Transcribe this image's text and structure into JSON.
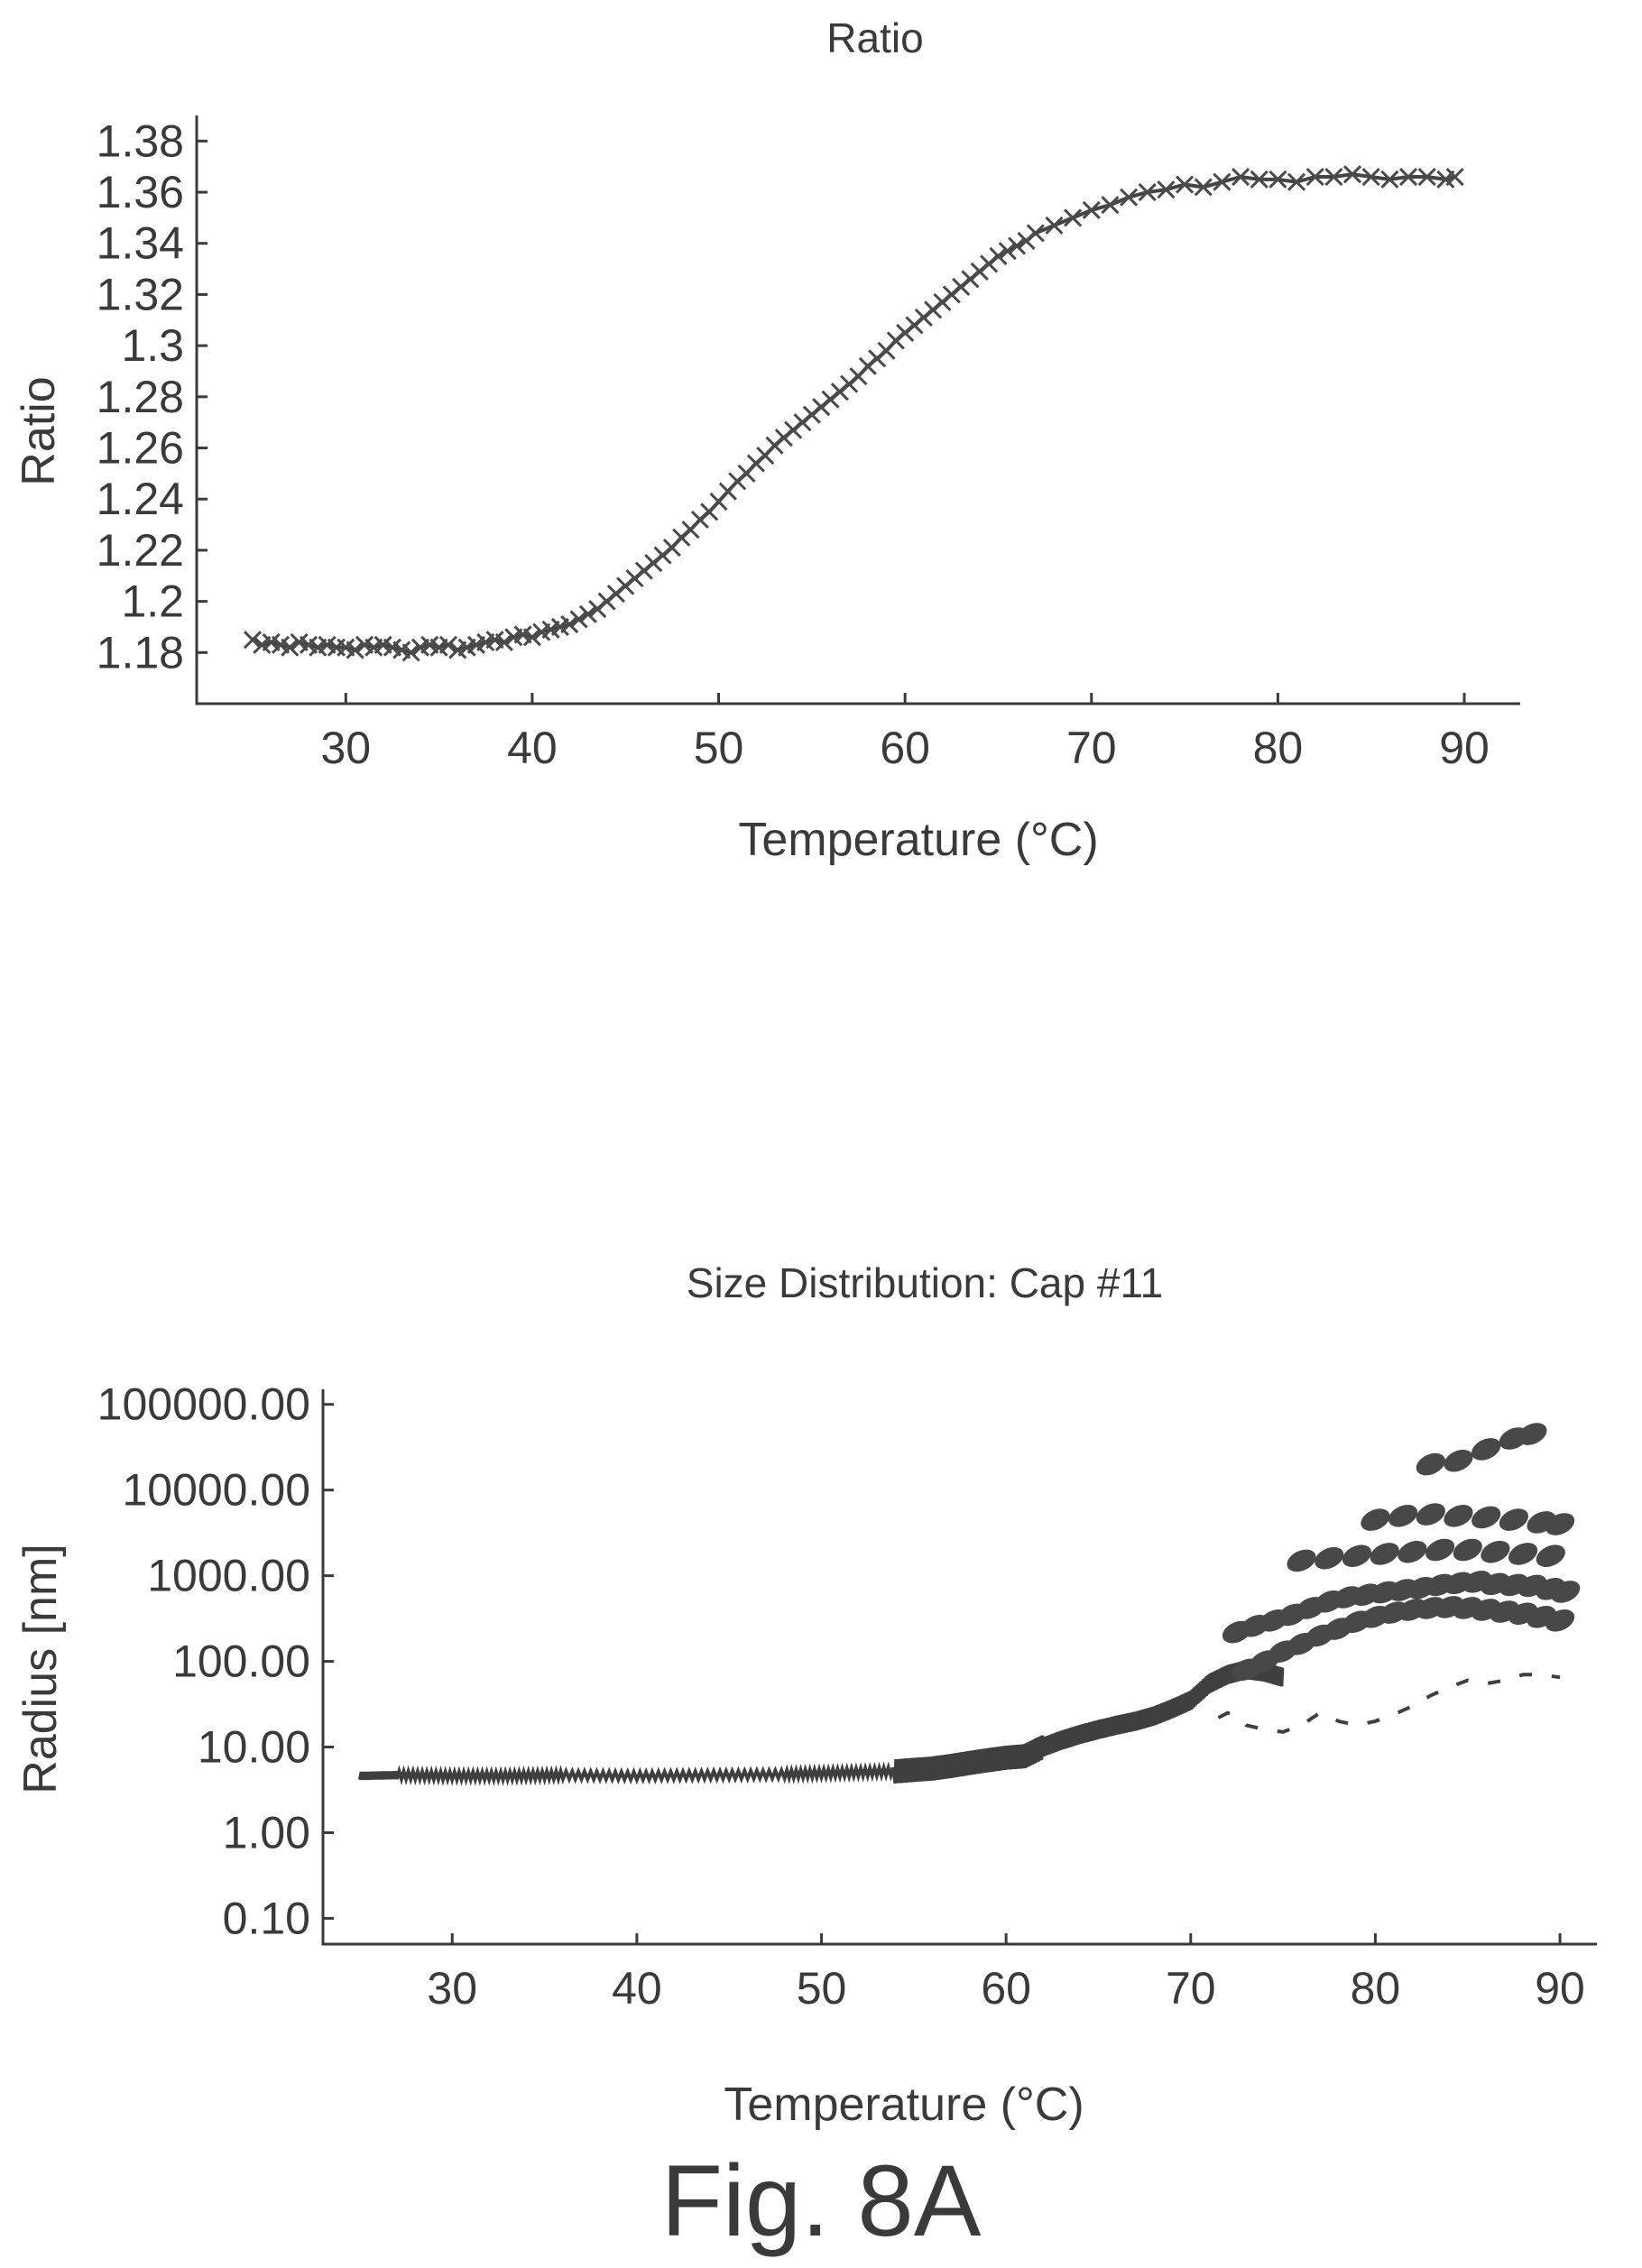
{
  "figure_caption": "Fig. 8A",
  "chart_data": [
    {
      "type": "scatter",
      "title": "Ratio",
      "xlabel": "Temperature (°C)",
      "ylabel": "Ratio",
      "xlim": [
        22,
        93
      ],
      "ylim": [
        1.16,
        1.39
      ],
      "xticks": [
        30,
        40,
        50,
        60,
        70,
        80,
        90
      ],
      "xtick_labels": [
        "30",
        "40",
        "50",
        "60",
        "70",
        "80",
        "90"
      ],
      "yticks": [
        1.18,
        1.2,
        1.22,
        1.24,
        1.26,
        1.28,
        1.3,
        1.32,
        1.34,
        1.36,
        1.38
      ],
      "ytick_labels": [
        "1.18",
        "1.2",
        "1.22",
        "1.24",
        "1.26",
        "1.28",
        "1.3",
        "1.32",
        "1.34",
        "1.36",
        "1.38"
      ],
      "series": [
        {
          "marker": "x",
          "x": [
            25,
            25.5,
            26,
            26.5,
            27,
            27.5,
            28,
            28.5,
            29,
            29.5,
            30,
            30.5,
            31,
            31.5,
            32,
            32.5,
            33,
            33.5,
            34,
            34.5,
            35,
            35.5,
            36,
            36.5,
            37,
            37.5,
            38,
            38.5,
            39,
            39.5,
            40,
            40.5,
            41,
            41.5,
            42,
            42.5,
            43,
            43.5,
            44,
            44.5,
            45,
            45.5,
            46,
            46.5,
            47,
            47.5,
            48,
            48.5,
            49,
            49.5,
            50,
            50.5,
            51,
            51.5,
            52,
            52.5,
            53,
            53.5,
            54,
            54.5,
            55,
            55.5,
            56,
            56.5,
            57,
            57.5,
            58,
            58.5,
            59,
            59.5,
            60,
            60.5,
            61,
            61.5,
            62,
            62.5,
            63,
            63.5,
            64,
            64.5,
            65,
            65.5,
            66,
            66.5,
            67,
            68,
            69,
            70,
            71,
            72,
            73,
            74,
            75,
            76,
            77,
            78,
            79,
            80,
            81,
            82,
            83,
            84,
            85,
            86,
            87,
            88,
            89,
            89.5
          ],
          "y": [
            1.185,
            1.183,
            1.184,
            1.183,
            1.182,
            1.184,
            1.183,
            1.182,
            1.183,
            1.182,
            1.182,
            1.181,
            1.183,
            1.182,
            1.183,
            1.182,
            1.181,
            1.18,
            1.182,
            1.183,
            1.182,
            1.183,
            1.181,
            1.182,
            1.183,
            1.184,
            1.185,
            1.184,
            1.186,
            1.187,
            1.186,
            1.188,
            1.189,
            1.19,
            1.191,
            1.193,
            1.195,
            1.197,
            1.2,
            1.203,
            1.206,
            1.209,
            1.212,
            1.215,
            1.218,
            1.221,
            1.225,
            1.228,
            1.232,
            1.235,
            1.239,
            1.243,
            1.247,
            1.25,
            1.254,
            1.257,
            1.261,
            1.264,
            1.267,
            1.27,
            1.273,
            1.276,
            1.279,
            1.282,
            1.285,
            1.288,
            1.292,
            1.295,
            1.298,
            1.302,
            1.305,
            1.308,
            1.311,
            1.314,
            1.317,
            1.32,
            1.323,
            1.326,
            1.329,
            1.332,
            1.335,
            1.337,
            1.339,
            1.341,
            1.344,
            1.347,
            1.35,
            1.353,
            1.355,
            1.358,
            1.36,
            1.361,
            1.363,
            1.362,
            1.364,
            1.366,
            1.365,
            1.365,
            1.364,
            1.366,
            1.366,
            1.367,
            1.366,
            1.365,
            1.366,
            1.366,
            1.365,
            1.366
          ]
        }
      ]
    },
    {
      "type": "line",
      "title": "Size Distribution: Cap #11",
      "xlabel": "Temperature (°C)",
      "ylabel": "Radius [nm]",
      "y_scale": "log",
      "xlim": [
        23,
        92
      ],
      "ylim": [
        0.05,
        150000
      ],
      "xticks": [
        30,
        40,
        50,
        60,
        70,
        80,
        90
      ],
      "xtick_labels": [
        "30",
        "40",
        "50",
        "60",
        "70",
        "80",
        "90"
      ],
      "yticks": [
        0.1,
        1,
        10,
        100,
        1000,
        10000,
        100000
      ],
      "ytick_labels": [
        "0.10",
        "1.00",
        "10.00",
        "100.00",
        "1000.00",
        "10000.00",
        "100000.00"
      ],
      "series": [
        {
          "x": [
            25,
            27,
            30,
            33,
            36,
            40,
            44,
            48,
            51,
            54,
            55,
            56,
            57,
            58,
            59,
            60,
            61,
            62,
            63,
            64,
            65,
            66,
            67,
            68,
            69,
            70,
            71,
            72,
            73,
            74,
            75
          ],
          "y": [
            4.6,
            4.7,
            4.6,
            4.6,
            4.7,
            4.6,
            4.7,
            4.8,
            5,
            5.2,
            5.4,
            5.6,
            6,
            6.5,
            7,
            7.5,
            7.8,
            10,
            12,
            14,
            16,
            18,
            20,
            23,
            28,
            35,
            55,
            70,
            80,
            75,
            65
          ]
        },
        {
          "x": [
            71.5,
            72,
            72.5,
            73,
            74,
            75,
            76,
            77,
            78,
            79,
            80,
            81,
            82,
            83,
            84,
            85,
            86,
            87,
            88,
            89,
            90
          ],
          "y": [
            22,
            25,
            23,
            18,
            16,
            15,
            18,
            25,
            20,
            18,
            20,
            24,
            30,
            40,
            50,
            60,
            55,
            60,
            70,
            70,
            65
          ]
        },
        {
          "x": [
            72.5,
            73.5,
            74.5,
            75.5,
            76.5,
            77.5,
            78.5,
            79.5,
            80.5,
            81.5,
            82.5,
            83.5,
            84.5,
            85.5,
            86.5,
            87.5,
            88.5,
            89.5,
            90.3,
            73,
            74,
            75,
            76,
            77,
            78,
            79,
            80,
            81,
            82,
            83,
            84,
            85,
            86,
            87,
            88,
            89,
            90,
            76,
            77.5,
            79,
            80.5,
            82,
            83.5,
            85,
            86.5,
            88,
            89.5,
            80,
            81.5,
            83,
            84.5,
            86,
            87.5,
            89,
            90,
            83,
            84.5,
            86,
            87.5,
            88.5
          ],
          "y": [
            220,
            260,
            300,
            350,
            420,
            500,
            560,
            600,
            640,
            680,
            720,
            780,
            820,
            850,
            800,
            780,
            760,
            700,
            650,
            80,
            100,
            130,
            160,
            200,
            240,
            290,
            330,
            370,
            400,
            420,
            430,
            420,
            400,
            380,
            360,
            330,
            300,
            1500,
            1600,
            1700,
            1800,
            1900,
            2000,
            2000,
            1900,
            1800,
            1700,
            4500,
            5000,
            5200,
            5000,
            4800,
            4500,
            4200,
            4000,
            20000,
            22000,
            30000,
            40000,
            45000
          ]
        }
      ]
    }
  ]
}
